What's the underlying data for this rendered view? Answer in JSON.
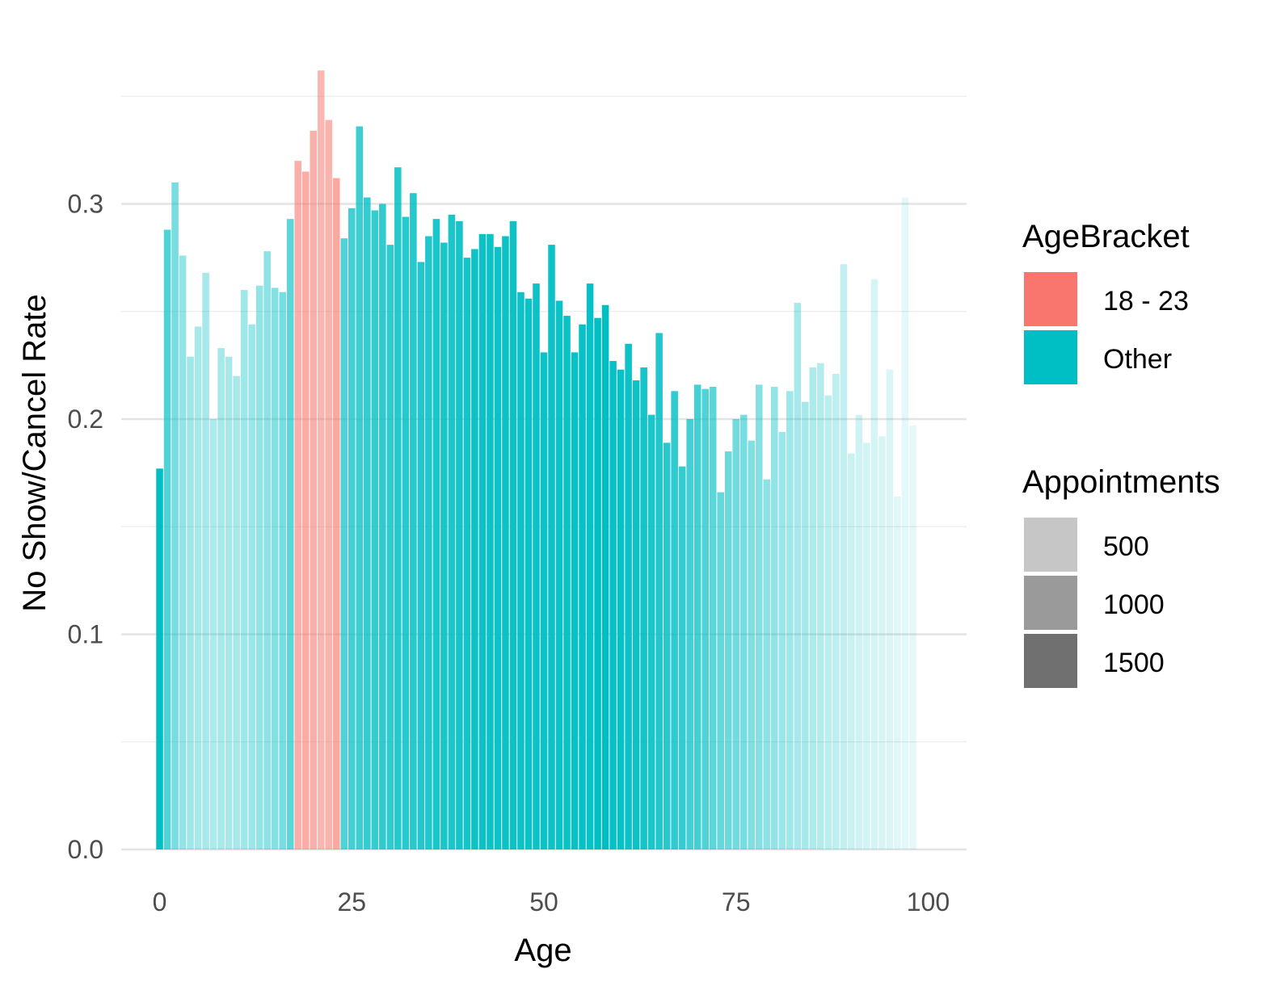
{
  "chart_data": {
    "type": "bar",
    "xlabel": "Age",
    "ylabel": "No Show/Cancel Rate",
    "xlim": [
      -5,
      105
    ],
    "ylim": [
      0,
      0.36
    ],
    "x_ticks": [
      "0",
      "25",
      "50",
      "75",
      "100"
    ],
    "x_tick_values": [
      0,
      25,
      50,
      75,
      100
    ],
    "y_ticks": [
      "0.0",
      "0.1",
      "0.2",
      "0.3"
    ],
    "y_tick_values": [
      0,
      0.1,
      0.2,
      0.3
    ],
    "grid": true,
    "legend_position": "right",
    "colors": {
      "18 - 23": "#F8766D",
      "Other": "#00BFC4"
    },
    "legends": {
      "fill": {
        "title": "AgeBracket",
        "entries": [
          "18 - 23",
          "Other"
        ]
      },
      "alpha": {
        "title": "Appointments",
        "entries": [
          "500",
          "1000",
          "1500"
        ],
        "values": [
          500,
          1000,
          1500
        ]
      }
    },
    "ages": [
      0,
      1,
      2,
      3,
      4,
      5,
      6,
      7,
      8,
      9,
      10,
      11,
      12,
      13,
      14,
      15,
      16,
      17,
      18,
      19,
      20,
      21,
      22,
      23,
      24,
      25,
      26,
      27,
      28,
      29,
      30,
      31,
      32,
      33,
      34,
      35,
      36,
      37,
      38,
      39,
      40,
      41,
      42,
      43,
      44,
      45,
      46,
      47,
      48,
      49,
      50,
      51,
      52,
      53,
      54,
      55,
      56,
      57,
      58,
      59,
      60,
      61,
      62,
      63,
      64,
      65,
      66,
      67,
      68,
      69,
      70,
      71,
      72,
      73,
      74,
      75,
      76,
      77,
      78,
      79,
      80,
      81,
      82,
      83,
      84,
      85,
      86,
      87,
      88,
      89,
      90,
      91,
      92,
      93,
      94,
      95,
      96,
      97,
      98
    ],
    "rates": [
      0.177,
      0.288,
      0.31,
      0.276,
      0.229,
      0.243,
      0.268,
      0.2,
      0.233,
      0.229,
      0.22,
      0.26,
      0.244,
      0.262,
      0.278,
      0.261,
      0.259,
      0.293,
      0.32,
      0.315,
      0.334,
      0.362,
      0.339,
      0.312,
      0.284,
      0.298,
      0.336,
      0.303,
      0.297,
      0.3,
      0.281,
      0.317,
      0.294,
      0.305,
      0.273,
      0.285,
      0.293,
      0.282,
      0.295,
      0.292,
      0.275,
      0.279,
      0.286,
      0.286,
      0.28,
      0.285,
      0.292,
      0.259,
      0.256,
      0.263,
      0.231,
      0.281,
      0.255,
      0.248,
      0.231,
      0.244,
      0.263,
      0.247,
      0.253,
      0.227,
      0.223,
      0.235,
      0.218,
      0.224,
      0.202,
      0.24,
      0.189,
      0.213,
      0.178,
      0.2,
      0.216,
      0.214,
      0.215,
      0.166,
      0.185,
      0.2,
      0.202,
      0.19,
      0.216,
      0.172,
      0.215,
      0.194,
      0.213,
      0.254,
      0.208,
      0.224,
      0.226,
      0.211,
      0.221,
      0.272,
      0.184,
      0.202,
      0.189,
      0.265,
      0.192,
      0.223,
      0.164,
      0.303,
      0.197
    ],
    "appointments": [
      1800,
      1200,
      900,
      700,
      600,
      550,
      550,
      500,
      550,
      550,
      550,
      600,
      650,
      700,
      750,
      800,
      900,
      1100,
      1000,
      1050,
      1000,
      900,
      950,
      1100,
      1200,
      1300,
      1350,
      1400,
      1400,
      1450,
      1450,
      1500,
      1500,
      1500,
      1550,
      1550,
      1600,
      1600,
      1600,
      1650,
      1650,
      1700,
      1700,
      1700,
      1700,
      1700,
      1700,
      1700,
      1700,
      1700,
      1700,
      1700,
      1700,
      1700,
      1750,
      1750,
      1750,
      1800,
      1800,
      1750,
      1750,
      1700,
      1700,
      1650,
      1600,
      1550,
      1500,
      1450,
      1400,
      1300,
      1300,
      1200,
      1100,
      1050,
      1000,
      950,
      900,
      850,
      800,
      750,
      700,
      650,
      600,
      550,
      550,
      500,
      450,
      400,
      380,
      350,
      300,
      250,
      220,
      200,
      180,
      150,
      120,
      100,
      80
    ],
    "brackets": [
      "Other",
      "Other",
      "Other",
      "Other",
      "Other",
      "Other",
      "Other",
      "Other",
      "Other",
      "Other",
      "Other",
      "Other",
      "Other",
      "Other",
      "Other",
      "Other",
      "Other",
      "Other",
      "18 - 23",
      "18 - 23",
      "18 - 23",
      "18 - 23",
      "18 - 23",
      "18 - 23",
      "Other",
      "Other",
      "Other",
      "Other",
      "Other",
      "Other",
      "Other",
      "Other",
      "Other",
      "Other",
      "Other",
      "Other",
      "Other",
      "Other",
      "Other",
      "Other",
      "Other",
      "Other",
      "Other",
      "Other",
      "Other",
      "Other",
      "Other",
      "Other",
      "Other",
      "Other",
      "Other",
      "Other",
      "Other",
      "Other",
      "Other",
      "Other",
      "Other",
      "Other",
      "Other",
      "Other",
      "Other",
      "Other",
      "Other",
      "Other",
      "Other",
      "Other",
      "Other",
      "Other",
      "Other",
      "Other",
      "Other",
      "Other",
      "Other",
      "Other",
      "Other",
      "Other",
      "Other",
      "Other",
      "Other",
      "Other",
      "Other",
      "Other",
      "Other",
      "Other",
      "Other",
      "Other",
      "Other",
      "Other",
      "Other",
      "Other",
      "Other",
      "Other",
      "Other",
      "Other",
      "Other",
      "Other",
      "Other",
      "Other",
      "Other"
    ]
  }
}
